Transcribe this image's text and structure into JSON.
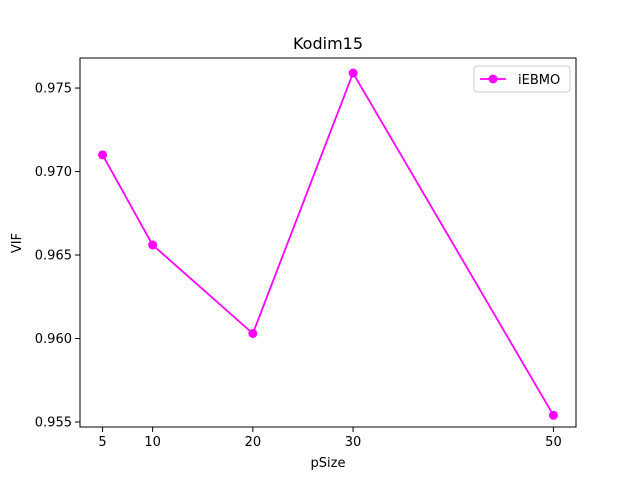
{
  "chart_data": {
    "type": "line",
    "title": "Kodim15",
    "xlabel": "pSize",
    "ylabel": "VIF",
    "x": [
      5,
      10,
      20,
      30,
      50
    ],
    "xticks": [
      5,
      10,
      20,
      30,
      50
    ],
    "yticks": [
      0.955,
      0.96,
      0.965,
      0.97,
      0.975
    ],
    "ytick_labels": [
      "0.955",
      "0.960",
      "0.965",
      "0.970",
      "0.975"
    ],
    "xlim": [
      2.75,
      52.25
    ],
    "ylim": [
      0.9547,
      0.9768
    ],
    "grid": false,
    "legend_position": "top-right",
    "series": [
      {
        "name": "iEBMO",
        "color": "#ff00ff",
        "marker": "circle",
        "values": [
          0.971,
          0.9656,
          0.9603,
          0.9759,
          0.9554
        ]
      }
    ]
  }
}
